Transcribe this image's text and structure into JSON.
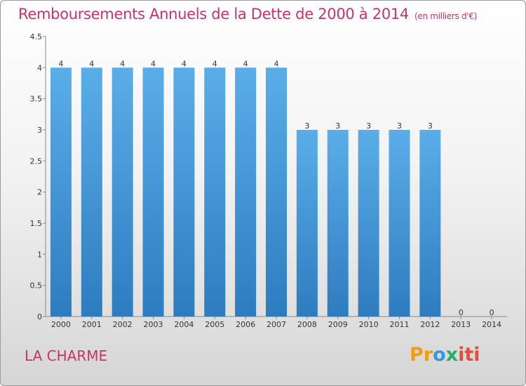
{
  "header": {
    "title": "Remboursements Annuels de la Dette de 2000 à 2014",
    "unit": "(en milliers d'€)"
  },
  "footer": {
    "commune": "LA CHARME",
    "logo_parts": [
      "Pr",
      "o",
      "x",
      "iti"
    ]
  },
  "colors": {
    "bar_top": "#5aaee8",
    "bar_bottom": "#2e7cc0",
    "title": "#c8336b"
  },
  "chart_data": {
    "type": "bar",
    "title": "Remboursements Annuels de la Dette de 2000 à 2014",
    "xlabel": "",
    "ylabel": "",
    "categories": [
      "2000",
      "2001",
      "2002",
      "2003",
      "2004",
      "2005",
      "2006",
      "2007",
      "2008",
      "2009",
      "2010",
      "2011",
      "2012",
      "2013",
      "2014"
    ],
    "values": [
      4,
      4,
      4,
      4,
      4,
      4,
      4,
      4,
      3,
      3,
      3,
      3,
      3,
      0,
      0
    ],
    "ylim": [
      0,
      4.5
    ],
    "yticks": [
      0,
      0.5,
      1,
      1.5,
      2,
      2.5,
      3,
      3.5,
      4,
      4.5
    ],
    "ytick_labels": [
      "0",
      "0.5",
      "1",
      "1.5",
      "2",
      "2.5",
      "3",
      "3.5",
      "4",
      "4.5"
    ],
    "grid": false,
    "data_labels": true
  }
}
